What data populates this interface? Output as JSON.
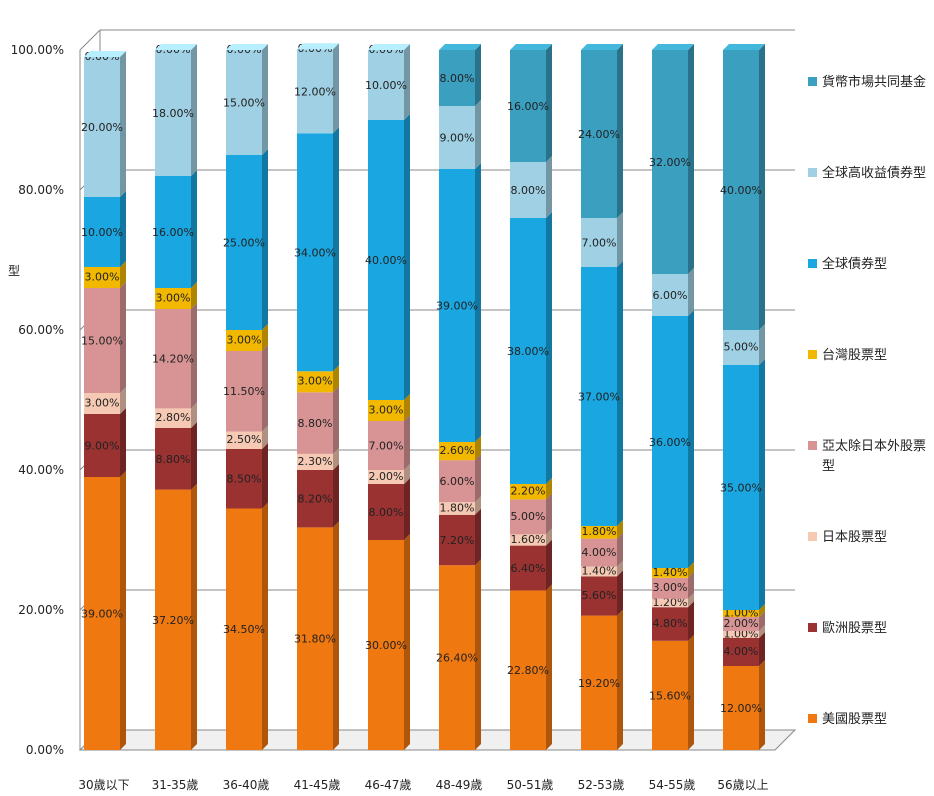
{
  "chart_data": {
    "type": "bar",
    "stacked": true,
    "percent": true,
    "ylabel": "型",
    "xlabel": "",
    "ylim": [
      0,
      100
    ],
    "yticks": [
      "0.00%",
      "20.00%",
      "40.00%",
      "60.00%",
      "80.00%",
      "100.00%"
    ],
    "grid": true,
    "legend_position": "right",
    "categories": [
      "30歲以下",
      "31-35歲",
      "36-40歲",
      "41-45歲",
      "46-47歲",
      "48-49歲",
      "50-51歲",
      "52-53歲",
      "54-55歲",
      "56歲以上"
    ],
    "series": [
      {
        "name": "美國股票型",
        "color": "#f07810",
        "values": [
          39.0,
          37.2,
          34.5,
          31.8,
          30.0,
          26.4,
          22.8,
          19.2,
          15.6,
          12.0
        ],
        "labels": [
          "39.00%",
          "37.20%",
          "34.50%",
          "31.80%",
          "30.00%",
          "26.40%",
          "22.80%",
          "19.20%",
          "15.60%",
          "12.00%"
        ]
      },
      {
        "name": "歐洲股票型",
        "color": "#9a3232",
        "values": [
          9.0,
          8.8,
          8.5,
          8.2,
          8.0,
          7.2,
          6.4,
          5.6,
          4.8,
          4.0
        ],
        "labels": [
          "9.00%",
          "8.80%",
          "8.50%",
          "8.20%",
          "8.00%",
          "7.20%",
          "6.40%",
          "5.60%",
          "4.80%",
          "4.00%"
        ]
      },
      {
        "name": "日本股票型",
        "color": "#f5c9b3",
        "values": [
          3.0,
          2.8,
          2.5,
          2.3,
          2.0,
          1.8,
          1.6,
          1.4,
          1.2,
          1.0
        ],
        "labels": [
          "3.00%",
          "2.80%",
          "2.50%",
          "2.30%",
          "2.00%",
          "1.80%",
          "1.60%",
          "1.40%",
          "1.20%",
          "1.00%"
        ]
      },
      {
        "name": "亞太除日本外股票型",
        "color": "#d89494",
        "values": [
          15.0,
          14.2,
          11.5,
          8.8,
          7.0,
          6.0,
          5.0,
          4.0,
          3.0,
          2.0
        ],
        "labels": [
          "15.00%",
          "14.20%",
          "11.50%",
          "8.80%",
          "7.00%",
          "6.00%",
          "5.00%",
          "4.00%",
          "3.00%",
          "2.00%"
        ]
      },
      {
        "name": "台灣股票型",
        "color": "#f2b800",
        "values": [
          3.0,
          3.0,
          3.0,
          3.0,
          3.0,
          2.6,
          2.2,
          1.8,
          1.4,
          1.0
        ],
        "labels": [
          "3.00%",
          "3.00%",
          "3.00%",
          "3.00%",
          "3.00%",
          "2.60%",
          "2.20%",
          "1.80%",
          "1.40%",
          "1.00%"
        ]
      },
      {
        "name": "全球債券型",
        "color": "#1aa6e0",
        "values": [
          10.0,
          16.0,
          25.0,
          34.0,
          40.0,
          39.0,
          38.0,
          37.0,
          36.0,
          35.0
        ],
        "labels": [
          "10.00%",
          "16.00%",
          "25.00%",
          "34.00%",
          "40.00%",
          "39.00%",
          "38.00%",
          "37.00%",
          "36.00%",
          "35.00%"
        ]
      },
      {
        "name": "全球高收益債券型",
        "color": "#9fd0e4",
        "values": [
          20.0,
          18.0,
          15.0,
          12.0,
          10.0,
          9.0,
          8.0,
          7.0,
          6.0,
          5.0
        ],
        "labels": [
          "20.00%",
          "18.00%",
          "15.00%",
          "12.00%",
          "10.00%",
          "9.00%",
          "8.00%",
          "7.00%",
          "6.00%",
          "5.00%"
        ]
      },
      {
        "name": "貨幣市場共同基金",
        "color": "#3b9fc0",
        "values": [
          0.0,
          0.0,
          0.0,
          0.0,
          0.0,
          8.0,
          16.0,
          24.0,
          32.0,
          40.0
        ],
        "labels": [
          "0.00%",
          "0.00%",
          "0.00%",
          "0.00%",
          "0.00%",
          "8.00%",
          "16.00%",
          "24.00%",
          "32.00%",
          "40.00%"
        ]
      }
    ],
    "legend": [
      {
        "text": "貨幣市場共同基金",
        "color": "#3b9fc0"
      },
      {
        "text": "全球高收益債券型",
        "color": "#9fd0e4"
      },
      {
        "text": "全球債券型",
        "color": "#1aa6e0"
      },
      {
        "text": "台灣股票型",
        "color": "#f2b800"
      },
      {
        "text": "亞太除日本外股票",
        "text2": "型",
        "color": "#d89494"
      },
      {
        "text": "日本股票型",
        "color": "#f5c9b3"
      },
      {
        "text": "歐洲股票型",
        "color": "#9a3232"
      },
      {
        "text": "美國股票型",
        "color": "#f07810"
      }
    ]
  }
}
